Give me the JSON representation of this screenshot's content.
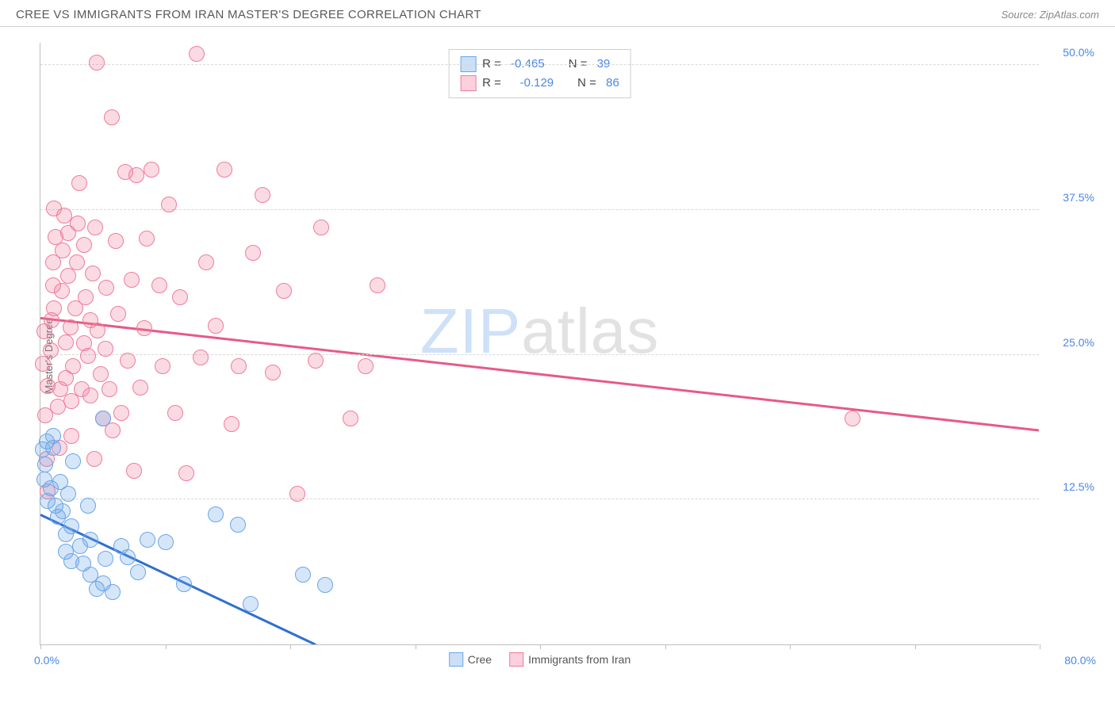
{
  "header": {
    "title": "CREE VS IMMIGRANTS FROM IRAN MASTER'S DEGREE CORRELATION CHART",
    "source_prefix": "Source: ",
    "source_name": "ZipAtlas.com"
  },
  "chart": {
    "type": "scatter",
    "ylabel": "Master's Degree",
    "xlim": [
      0,
      80
    ],
    "ylim": [
      0,
      52
    ],
    "x_ticks": [
      0,
      10,
      20,
      30,
      40,
      50,
      60,
      70,
      80
    ],
    "y_gridlines": [
      12.5,
      25.0,
      37.5,
      50.0
    ],
    "y_tick_labels": [
      "12.5%",
      "25.0%",
      "37.5%",
      "50.0%"
    ],
    "x_min_label": "0.0%",
    "x_max_label": "80.0%",
    "background_color": "#ffffff",
    "grid_color": "#d8d8d8",
    "axis_color": "#bfbfbf",
    "marker_radius": 10,
    "marker_fill_opacity": 0.28,
    "marker_stroke_width": 1.4,
    "watermark": {
      "zip": "ZIP",
      "atlas": "atlas"
    }
  },
  "series": {
    "blue": {
      "name": "Cree",
      "color": "#6aa6e8",
      "line_color": "#2f6fd1",
      "R": "-0.465",
      "N": "39",
      "trend": {
        "x1": 0,
        "y1": 11.2,
        "x2": 22,
        "y2": 0
      },
      "trend_dash": {
        "x1": 22,
        "y1": 0,
        "x2": 27,
        "y2": -2.5
      },
      "points": [
        [
          0.2,
          16.8
        ],
        [
          0.4,
          15.5
        ],
        [
          0.3,
          14.2
        ],
        [
          0.8,
          13.5
        ],
        [
          0.5,
          17.5
        ],
        [
          1.0,
          17.0
        ],
        [
          1.0,
          18.0
        ],
        [
          1.2,
          12.0
        ],
        [
          1.6,
          14.0
        ],
        [
          1.4,
          11.0
        ],
        [
          1.8,
          11.5
        ],
        [
          2.0,
          9.5
        ],
        [
          2.2,
          13.0
        ],
        [
          2.0,
          8.0
        ],
        [
          2.5,
          10.2
        ],
        [
          2.5,
          7.2
        ],
        [
          3.2,
          8.5
        ],
        [
          3.4,
          7.0
        ],
        [
          3.8,
          12.0
        ],
        [
          4.0,
          6.0
        ],
        [
          4.0,
          9.0
        ],
        [
          4.5,
          4.8
        ],
        [
          5.0,
          5.3
        ],
        [
          5.2,
          7.4
        ],
        [
          5.8,
          4.5
        ],
        [
          6.5,
          8.5
        ],
        [
          7.0,
          7.5
        ],
        [
          7.8,
          6.2
        ],
        [
          8.6,
          9.0
        ],
        [
          10.0,
          8.8
        ],
        [
          11.5,
          5.2
        ],
        [
          14.0,
          11.2
        ],
        [
          15.8,
          10.3
        ],
        [
          16.8,
          3.5
        ],
        [
          21.0,
          6.0
        ],
        [
          22.8,
          5.1
        ],
        [
          2.6,
          15.8
        ],
        [
          5.0,
          19.5
        ],
        [
          0.6,
          12.4
        ]
      ]
    },
    "pink": {
      "name": "Immigrants from Iran",
      "color": "#f07c9b",
      "line_color": "#e75a87",
      "R": "-0.129",
      "N": "86",
      "trend": {
        "x1": 0,
        "y1": 28.2,
        "x2": 80,
        "y2": 18.5
      },
      "points": [
        [
          0.2,
          24.2
        ],
        [
          0.3,
          27.0
        ],
        [
          0.4,
          19.8
        ],
        [
          0.5,
          16.0
        ],
        [
          0.6,
          13.2
        ],
        [
          0.6,
          22.3
        ],
        [
          0.8,
          25.4
        ],
        [
          0.9,
          28.0
        ],
        [
          1.0,
          31.0
        ],
        [
          1.1,
          29.0
        ],
        [
          1.0,
          33.0
        ],
        [
          1.2,
          35.2
        ],
        [
          1.1,
          37.6
        ],
        [
          1.4,
          20.5
        ],
        [
          1.5,
          17.0
        ],
        [
          1.6,
          22.0
        ],
        [
          1.7,
          30.5
        ],
        [
          1.8,
          34.0
        ],
        [
          1.9,
          37.0
        ],
        [
          2.0,
          26.1
        ],
        [
          2.0,
          23.0
        ],
        [
          2.2,
          31.8
        ],
        [
          2.2,
          35.5
        ],
        [
          2.4,
          27.4
        ],
        [
          2.5,
          21.0
        ],
        [
          2.5,
          18.0
        ],
        [
          2.6,
          24.0
        ],
        [
          2.8,
          29.0
        ],
        [
          2.9,
          33.0
        ],
        [
          3.0,
          36.3
        ],
        [
          3.1,
          39.8
        ],
        [
          3.3,
          22.0
        ],
        [
          3.5,
          26.0
        ],
        [
          3.5,
          34.5
        ],
        [
          3.6,
          30.0
        ],
        [
          3.8,
          24.9
        ],
        [
          4.0,
          21.5
        ],
        [
          4.0,
          28.0
        ],
        [
          4.2,
          32.0
        ],
        [
          4.4,
          36.0
        ],
        [
          4.5,
          50.2
        ],
        [
          4.6,
          27.1
        ],
        [
          4.8,
          23.3
        ],
        [
          5.0,
          19.5
        ],
        [
          5.2,
          25.5
        ],
        [
          5.3,
          30.8
        ],
        [
          5.5,
          22.0
        ],
        [
          5.7,
          45.5
        ],
        [
          5.8,
          18.5
        ],
        [
          6.0,
          34.8
        ],
        [
          6.2,
          28.5
        ],
        [
          6.5,
          20.0
        ],
        [
          6.8,
          40.8
        ],
        [
          7.0,
          24.5
        ],
        [
          7.3,
          31.5
        ],
        [
          7.5,
          15.0
        ],
        [
          7.7,
          40.5
        ],
        [
          8.0,
          22.2
        ],
        [
          8.3,
          27.3
        ],
        [
          8.5,
          35.0
        ],
        [
          8.9,
          41.0
        ],
        [
          9.5,
          31.0
        ],
        [
          9.8,
          24.0
        ],
        [
          10.3,
          38.0
        ],
        [
          10.8,
          20.0
        ],
        [
          11.2,
          30.0
        ],
        [
          11.7,
          14.8
        ],
        [
          12.5,
          51.0
        ],
        [
          12.8,
          24.8
        ],
        [
          13.3,
          33.0
        ],
        [
          14.0,
          27.5
        ],
        [
          14.7,
          41.0
        ],
        [
          15.3,
          19.0
        ],
        [
          15.9,
          24.0
        ],
        [
          17.0,
          33.8
        ],
        [
          17.8,
          38.8
        ],
        [
          18.6,
          23.5
        ],
        [
          19.5,
          30.5
        ],
        [
          20.6,
          13.0
        ],
        [
          22.0,
          24.5
        ],
        [
          22.5,
          36.0
        ],
        [
          24.8,
          19.5
        ],
        [
          26.0,
          24.0
        ],
        [
          27.0,
          31.0
        ],
        [
          65.0,
          19.5
        ],
        [
          4.3,
          16.0
        ]
      ]
    }
  },
  "legend_top": {
    "labels": {
      "R": "R =",
      "N": "N ="
    }
  }
}
